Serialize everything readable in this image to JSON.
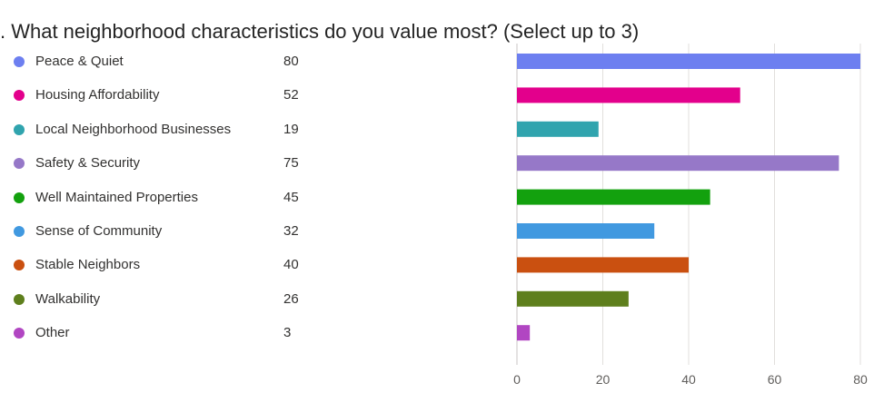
{
  "question": {
    "title": ". What neighborhood characteristics do you value most? (Select up to 3)"
  },
  "chart_data": {
    "type": "bar",
    "orientation": "horizontal",
    "title": ". What neighborhood characteristics do you value most? (Select up to 3)",
    "categories": [
      "Peace & Quiet",
      "Housing Affordability",
      "Local Neighborhood Businesses",
      "Safety & Security",
      "Well Maintained Properties",
      "Sense of Community",
      "Stable Neighbors",
      "Walkability",
      "Other"
    ],
    "values": [
      80,
      52,
      19,
      75,
      45,
      32,
      40,
      26,
      3
    ],
    "colors": [
      "#6d7ff0",
      "#e3008c",
      "#30a4ae",
      "#9678c8",
      "#13a10e",
      "#4199e0",
      "#ca5010",
      "#5e7f1d",
      "#b146c2"
    ],
    "xlim": [
      0,
      80
    ],
    "xticks": [
      0,
      20,
      40,
      60,
      80
    ],
    "grid": true,
    "legend": "left"
  }
}
